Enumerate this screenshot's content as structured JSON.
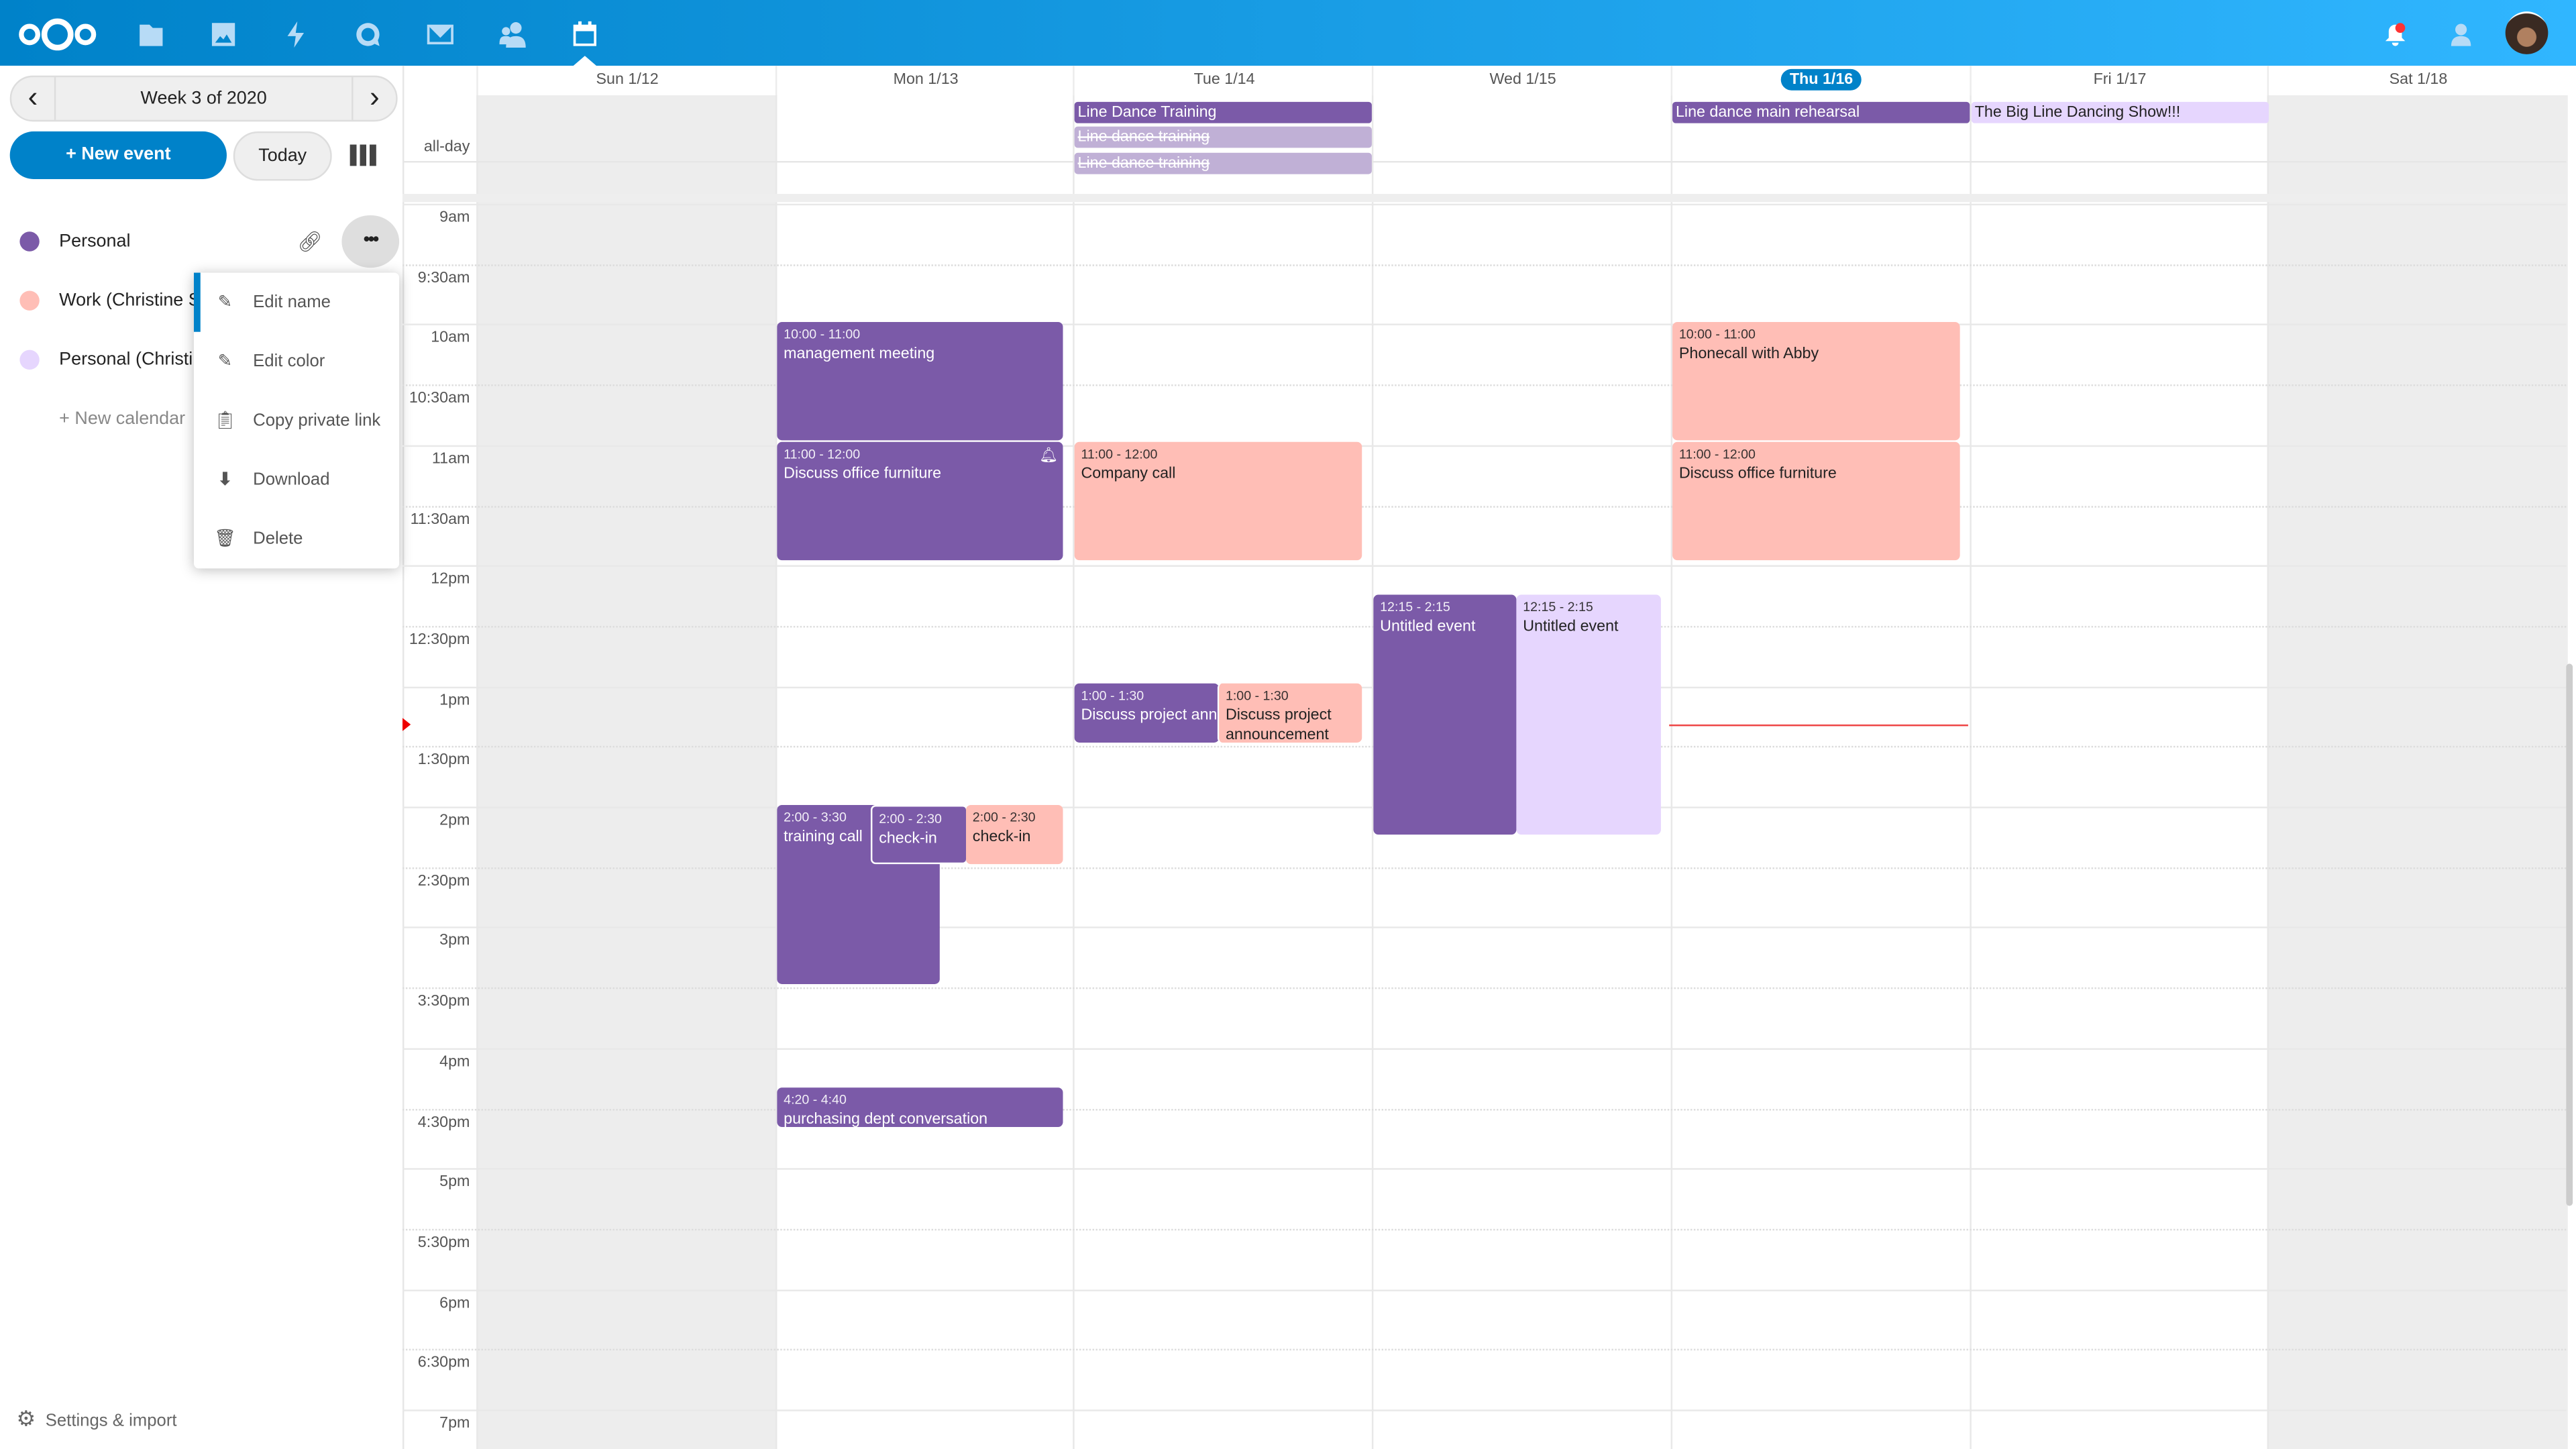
{
  "header": {
    "apps": [
      "files-icon",
      "photos-icon",
      "activity-icon",
      "talk-icon",
      "mail-icon",
      "contacts-icon",
      "calendar-icon"
    ],
    "accent": "#0082c9"
  },
  "sidebar": {
    "week_label": "Week 3 of 2020",
    "new_event": "+ New event",
    "today": "Today",
    "calendars": [
      {
        "label": "Personal",
        "color": "#7b5aa8"
      },
      {
        "label": "Work (Christine S",
        "color": "#ffbeb6"
      },
      {
        "label": "Personal (Christi",
        "color": "#e6d6fe"
      }
    ],
    "new_calendar": "+ New calendar",
    "settings": "Settings & import",
    "menu": [
      "Edit name",
      "Edit color",
      "Copy private link",
      "Download",
      "Delete"
    ]
  },
  "calendar": {
    "days": [
      "Sun 1/12",
      "Mon 1/13",
      "Tue 1/14",
      "Wed 1/15",
      "Thu 1/16",
      "Fri 1/17",
      "Sat 1/18"
    ],
    "allday_label": "all-day",
    "time_labels": [
      "9am",
      "9:30am",
      "10am",
      "10:30am",
      "11am",
      "11:30am",
      "12pm",
      "12:30pm",
      "1pm",
      "1:30pm",
      "2pm",
      "2:30pm",
      "3pm",
      "3:30pm",
      "4pm",
      "4:30pm",
      "5pm",
      "5:30pm",
      "6pm",
      "6:30pm",
      "7pm"
    ],
    "allday_events": {
      "tue1": "Line Dance Training",
      "tue2": "Line dance training",
      "tue3": "Line dance training",
      "thu": "Line dance main rehearsal",
      "fri": "The Big Line Dancing Show!!!"
    },
    "events": {
      "mon1": {
        "time": "10:00 - 11:00",
        "title": "management meeting"
      },
      "mon2": {
        "time": "11:00 - 12:00",
        "title": "Discuss office furniture"
      },
      "mon3": {
        "time": "2:00 - 3:30",
        "title": "training call"
      },
      "mon4": {
        "time": "2:00 - 2:30",
        "title": "check-in"
      },
      "mon5": {
        "time": "2:00 - 2:30",
        "title": "check-in"
      },
      "mon6": {
        "time": "4:20 - 4:40",
        "title": "purchasing dept conversation"
      },
      "tue1": {
        "time": "11:00 - 12:00",
        "title": "Company call"
      },
      "tue2": {
        "time": "1:00 - 1:30",
        "title": "Discuss project announcement"
      },
      "tue3": {
        "time": "1:00 - 1:30",
        "title": "Discuss project announcement"
      },
      "wed1": {
        "time": "12:15 - 2:15",
        "title": "Untitled event"
      },
      "wed2": {
        "time": "12:15 - 2:15",
        "title": "Untitled event"
      },
      "thu1": {
        "time": "10:00 - 11:00",
        "title": "Phonecall with Abby"
      },
      "thu2": {
        "time": "11:00 - 12:00",
        "title": "Discuss office furniture"
      }
    }
  }
}
